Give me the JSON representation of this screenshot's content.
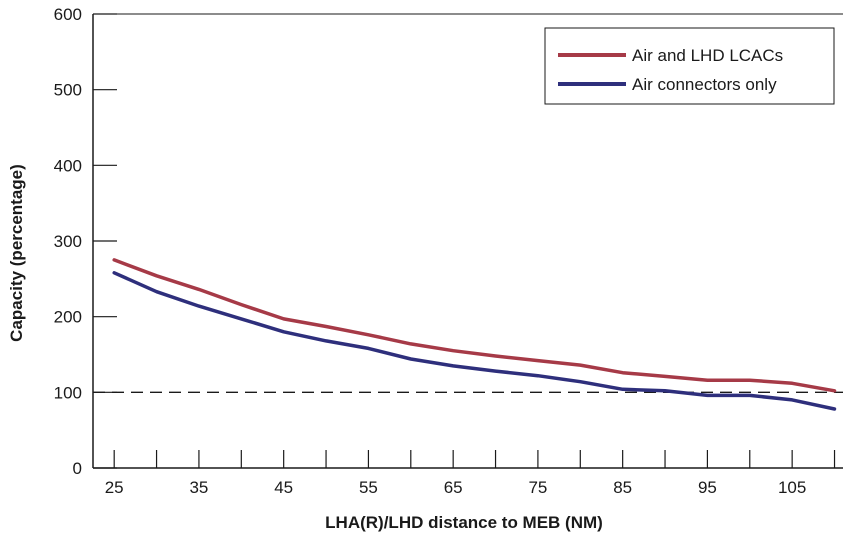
{
  "chart_data": {
    "type": "line",
    "xlabel": "LHA(R)/LHD distance to MEB (NM)",
    "ylabel": "Capacity (percentage)",
    "x": [
      25,
      30,
      35,
      40,
      45,
      50,
      55,
      60,
      65,
      70,
      75,
      80,
      85,
      90,
      95,
      100,
      105,
      110
    ],
    "xticks": [
      25,
      30,
      35,
      40,
      45,
      50,
      55,
      60,
      65,
      70,
      75,
      80,
      85,
      90,
      95,
      100,
      105,
      110
    ],
    "xtick_labels": [
      "25",
      "35",
      "45",
      "55",
      "65",
      "75",
      "85",
      "95",
      "105"
    ],
    "xlim": [
      22.5,
      111
    ],
    "ylim": [
      0,
      600
    ],
    "yticks": [
      0,
      100,
      200,
      300,
      400,
      500,
      600
    ],
    "reference_line": {
      "y": 100,
      "style": "dashed"
    },
    "legend_position": "top-right",
    "grid": false,
    "series": [
      {
        "name": "Air and LHD LCACs",
        "color": "#a63a47",
        "values": [
          275,
          254,
          236,
          216,
          197,
          187,
          176,
          164,
          155,
          148,
          142,
          136,
          126,
          121,
          116,
          116,
          112,
          102
        ]
      },
      {
        "name": "Air connectors only",
        "color": "#2e2f7c",
        "values": [
          258,
          233,
          214,
          197,
          180,
          168,
          158,
          144,
          135,
          128,
          122,
          114,
          104,
          102,
          96,
          96,
          90,
          78
        ]
      }
    ]
  }
}
